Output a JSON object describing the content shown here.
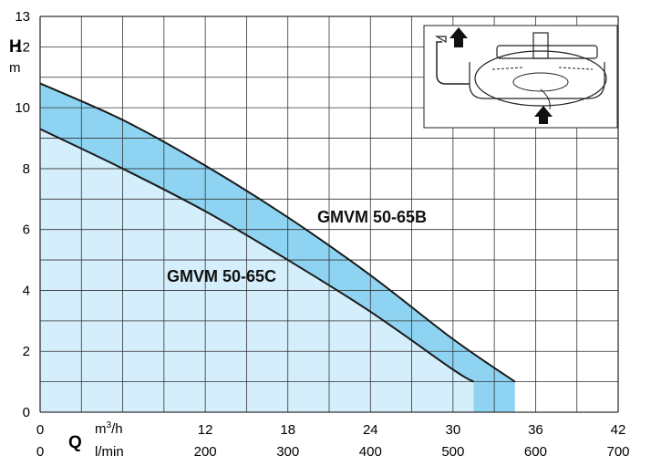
{
  "chart_data": {
    "type": "area",
    "title": "",
    "y_axis": {
      "symbol": "H",
      "unit": "m",
      "range": [
        0,
        13
      ],
      "ticks": [
        0,
        2,
        4,
        6,
        8,
        10,
        12,
        13
      ]
    },
    "x_axis": {
      "symbol": "Q",
      "primary": {
        "unit": "m³/h",
        "range": [
          0,
          42
        ],
        "ticks": [
          0,
          12,
          18,
          24,
          30,
          36,
          42
        ]
      },
      "secondary": {
        "unit": "l/min",
        "range": [
          0,
          700
        ],
        "ticks": [
          0,
          200,
          300,
          400,
          500,
          600,
          700
        ]
      }
    },
    "grid": true,
    "series": [
      {
        "name": "GMVM 50-65B",
        "x": [
          0,
          6,
          12,
          18,
          24,
          30,
          34.5
        ],
        "y": [
          10.8,
          9.6,
          8.1,
          6.4,
          4.5,
          2.4,
          1.0
        ]
      },
      {
        "name": "GMVM 50-65C",
        "x": [
          0,
          6,
          12,
          18,
          24,
          30,
          31.5
        ],
        "y": [
          9.3,
          8.0,
          6.6,
          5.0,
          3.3,
          1.4,
          1.0
        ]
      }
    ],
    "colors": {
      "band_fill": "#8ed4f2",
      "under_fill": "#d4eefb",
      "curve": "#1a1a1a",
      "grid": "#333333"
    }
  },
  "labels": {
    "y_symbol": "H",
    "y_unit": "m",
    "x_symbol": "Q",
    "x_unit_primary": "m",
    "x_unit_primary_sup": "3",
    "x_unit_primary_suffix": "/h",
    "x_unit_secondary": "l/min",
    "series_b": "GMVM 50-65B",
    "series_c": "GMVM 50-65C"
  },
  "inset": {
    "icon": "pump-diagram-icon"
  }
}
